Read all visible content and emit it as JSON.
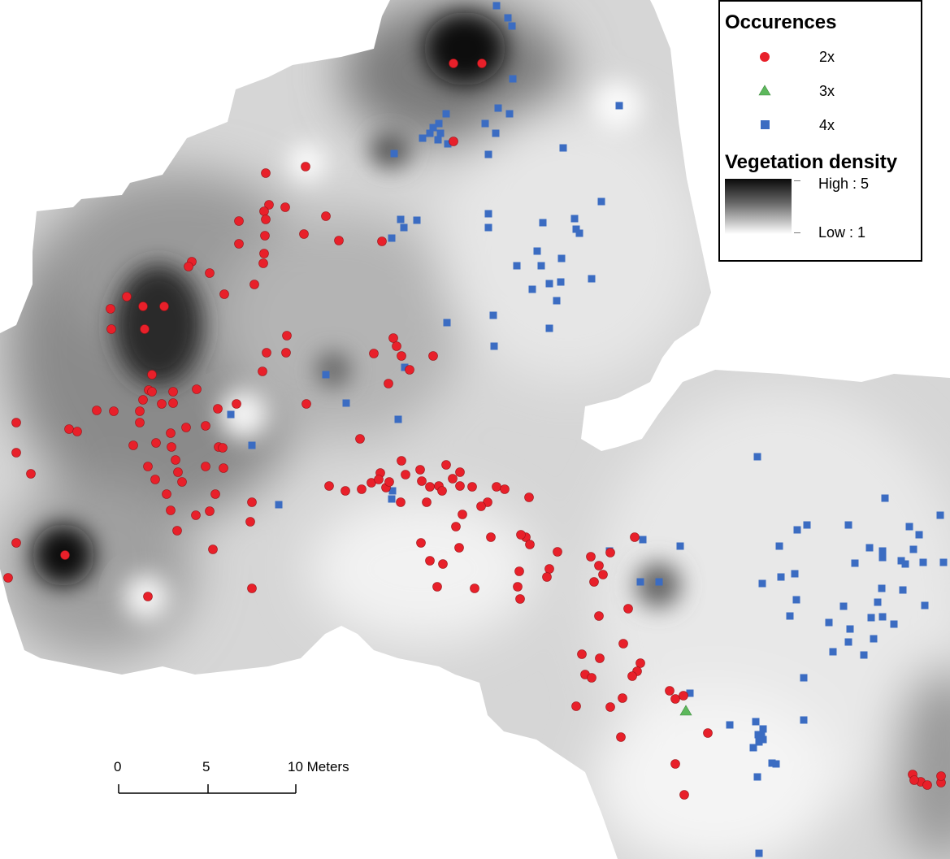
{
  "legend": {
    "occurrences_title": "Occurences",
    "items": [
      {
        "label": "2x",
        "symbol": "circle",
        "color": "#e8202a"
      },
      {
        "label": "3x",
        "symbol": "triangle",
        "color": "#5db85c"
      },
      {
        "label": "4x",
        "symbol": "square",
        "color": "#3b6cc2"
      }
    ],
    "density_title": "Vegetation density",
    "high_label": "High : 5",
    "low_label": "Low : 1"
  },
  "scale": {
    "ticks": [
      "0",
      "5",
      "10 Meters"
    ]
  },
  "colors": {
    "occ_2x": "#e8202a",
    "occ_3x": "#5db85c",
    "occ_4x": "#3b6cc2",
    "density_high": "#0a0a0a",
    "density_low": "#ffffff"
  }
}
